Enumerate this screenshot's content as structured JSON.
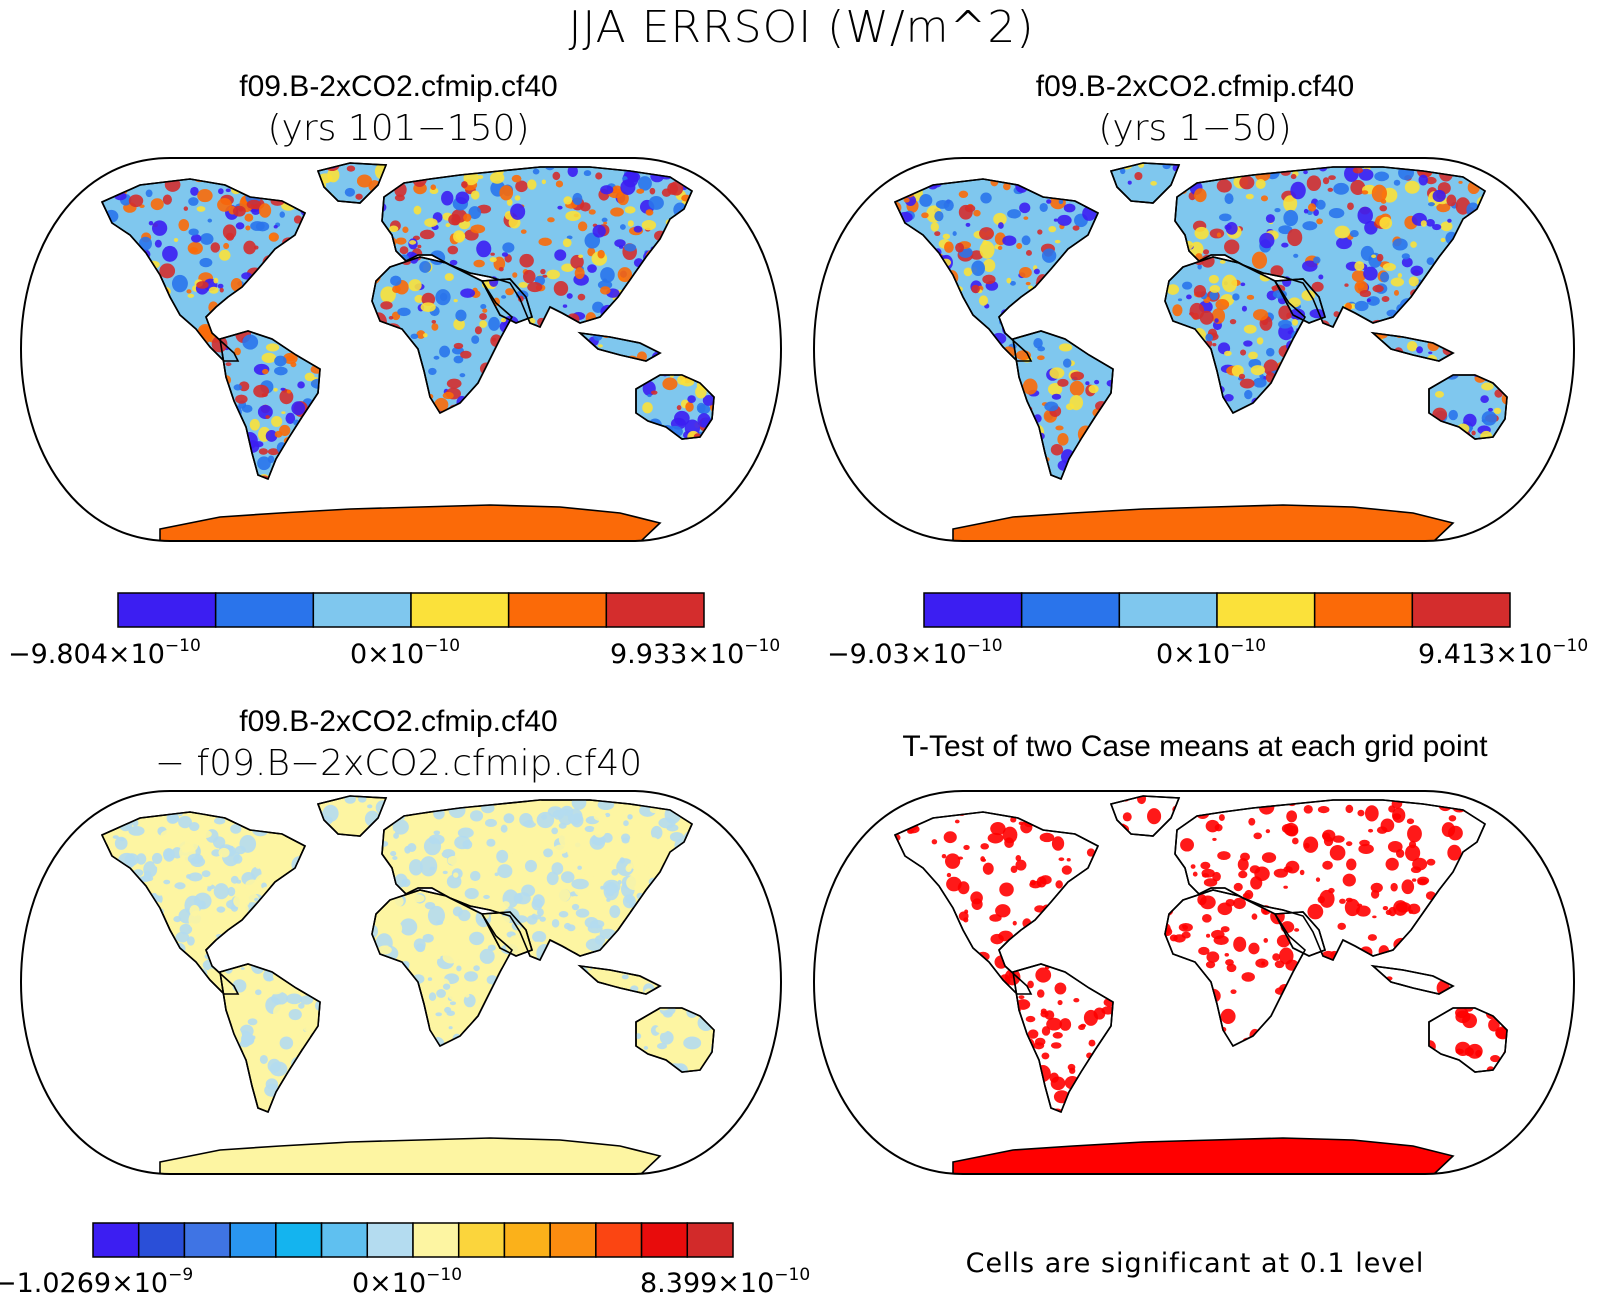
{
  "main_title": "JJA ERRSOI (W/m^2)",
  "panels": [
    {
      "title": "f09.B-2xCO2.cfmip.cf40",
      "subtitle": "(yrs 101−150)",
      "colorbar": {
        "colors": [
          "#3c1ef2",
          "#2a74eb",
          "#7fc7ee",
          "#fbe13a",
          "#fb6a08",
          "#d42d2d"
        ],
        "labels": [
          {
            "mant": "−9.804×10",
            "exp": "−10"
          },
          {
            "mant": "0×10",
            "exp": "−10"
          },
          {
            "mant": "9.933×10",
            "exp": "−10"
          }
        ]
      }
    },
    {
      "title": "f09.B-2xCO2.cfmip.cf40",
      "subtitle": "(yrs 1−50)",
      "colorbar": {
        "colors": [
          "#3c1ef2",
          "#2a74eb",
          "#7fc7ee",
          "#fbe13a",
          "#fb6a08",
          "#d42d2d"
        ],
        "labels": [
          {
            "mant": "−9.03×10",
            "exp": "−10"
          },
          {
            "mant": "0×10",
            "exp": "−10"
          },
          {
            "mant": "9.413×10",
            "exp": "−10"
          }
        ]
      }
    },
    {
      "title": "f09.B-2xCO2.cfmip.cf40",
      "subtitle": "− f09.B−2xCO2.cfmip.cf40",
      "colorbar": {
        "colors": [
          "#3c1ef2",
          "#2a4fd8",
          "#3f74e4",
          "#2a96f0",
          "#14b4ef",
          "#5fc0f0",
          "#b4dcf0",
          "#fdf5a2",
          "#fbd53c",
          "#fbb11a",
          "#fb8c10",
          "#fb4512",
          "#e80c0c",
          "#d22a2a"
        ],
        "labels": [
          {
            "mant": "−1.0269×10",
            "exp": "−9"
          },
          {
            "mant": "0×10",
            "exp": "−10"
          },
          {
            "mant": "8.399×10",
            "exp": "−10"
          }
        ]
      }
    },
    {
      "title": "T-Test of two Case means at each grid point",
      "subtitle": "",
      "note": "Cells are significant at 0.1 level"
    }
  ]
}
